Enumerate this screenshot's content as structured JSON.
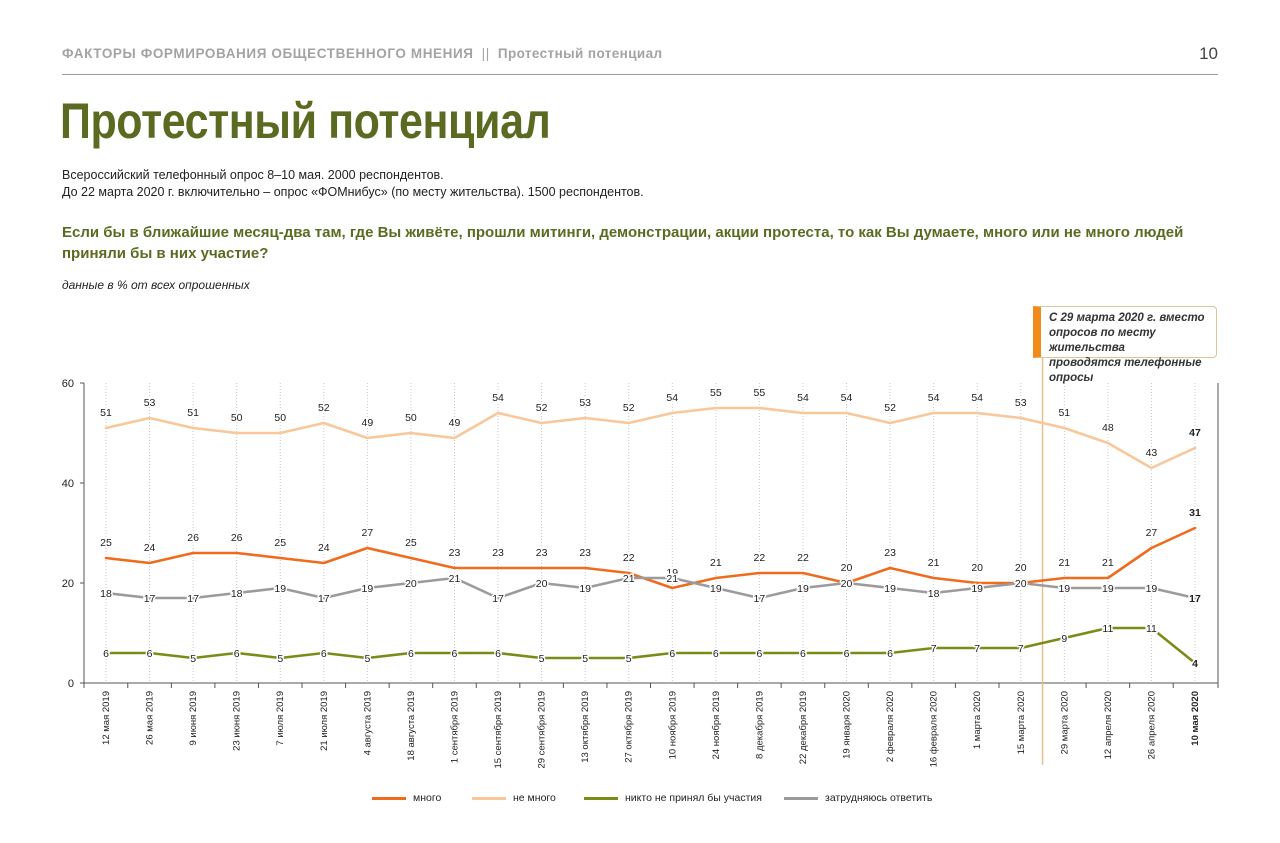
{
  "header": {
    "section": "ФАКТОРЫ ФОРМИРОВАНИЯ ОБЩЕСТВЕННОГО МНЕНИЯ",
    "separator": "||",
    "subsection": "Протестный потенциал",
    "page_number": "10"
  },
  "title": "Протестный потенциал",
  "method": {
    "line1": "Всероссийский телефонный опрос 8–10 мая. 2000 респондентов.",
    "line2": "До 22 марта 2020 г. включительно – опрос «ФОМнибус» (по месту жительства). 1500 респондентов."
  },
  "question": "Если бы в ближайшие месяц-два там, где Вы живёте, прошли митинги, демонстрации, акции протеста, то как Вы думаете, много или не много людей приняли бы в них участие?",
  "units_note": "данные в % от всех опрошенных",
  "callout": {
    "line1": "С 29 марта 2020 г. вместо",
    "line2": "опросов по месту жительства",
    "line3": "проводятся телефонные опросы",
    "accent_color": "#f08a1a"
  },
  "chart_data": {
    "type": "line",
    "ylim": [
      0,
      60
    ],
    "yticks": [
      0,
      20,
      40,
      60
    ],
    "grid": "vertical dotted lines at each date",
    "method_change_after_index": 21,
    "x": [
      "12 мая 2019",
      "26 мая 2019",
      "9 июня 2019",
      "23 июня 2019",
      "7 июля 2019",
      "21 июля 2019",
      "4 августа 2019",
      "18 августа 2019",
      "1 сентября 2019",
      "15 сентября 2019",
      "29 сентября 2019",
      "13 октября 2019",
      "27 октября 2019",
      "10 ноября 2019",
      "24 ноября 2019",
      "8 декабря 2019",
      "22 декабря 2019",
      "19 января 2020",
      "2 февраля 2020",
      "16 февраля 2020",
      "1 марта 2020",
      "15 марта 2020",
      "29 марта 2020",
      "12 апреля 2020",
      "26 апреля 2020",
      "10 мая 2020"
    ],
    "series": [
      {
        "name": "много",
        "color": "#ef6b1e",
        "values": [
          25,
          24,
          26,
          26,
          25,
          24,
          27,
          25,
          23,
          23,
          23,
          23,
          22,
          19,
          21,
          22,
          22,
          20,
          23,
          21,
          20,
          20,
          21,
          21,
          27,
          31
        ]
      },
      {
        "name": "не много",
        "color": "#f9c79a",
        "values": [
          51,
          53,
          51,
          50,
          50,
          52,
          49,
          50,
          49,
          54,
          52,
          53,
          52,
          54,
          55,
          55,
          54,
          54,
          52,
          54,
          54,
          53,
          51,
          48,
          43,
          47
        ]
      },
      {
        "name": "никто не принял бы участия",
        "color": "#7a8c18",
        "values": [
          6,
          6,
          5,
          6,
          5,
          6,
          5,
          6,
          6,
          6,
          5,
          5,
          5,
          6,
          6,
          6,
          6,
          6,
          6,
          7,
          7,
          7,
          9,
          11,
          11,
          4
        ]
      },
      {
        "name": "затрудняюсь ответить",
        "color": "#9b9b9b",
        "values": [
          18,
          17,
          17,
          18,
          19,
          17,
          19,
          20,
          21,
          17,
          20,
          19,
          21,
          21,
          19,
          17,
          19,
          20,
          19,
          18,
          19,
          20,
          19,
          19,
          19,
          17
        ]
      }
    ]
  }
}
